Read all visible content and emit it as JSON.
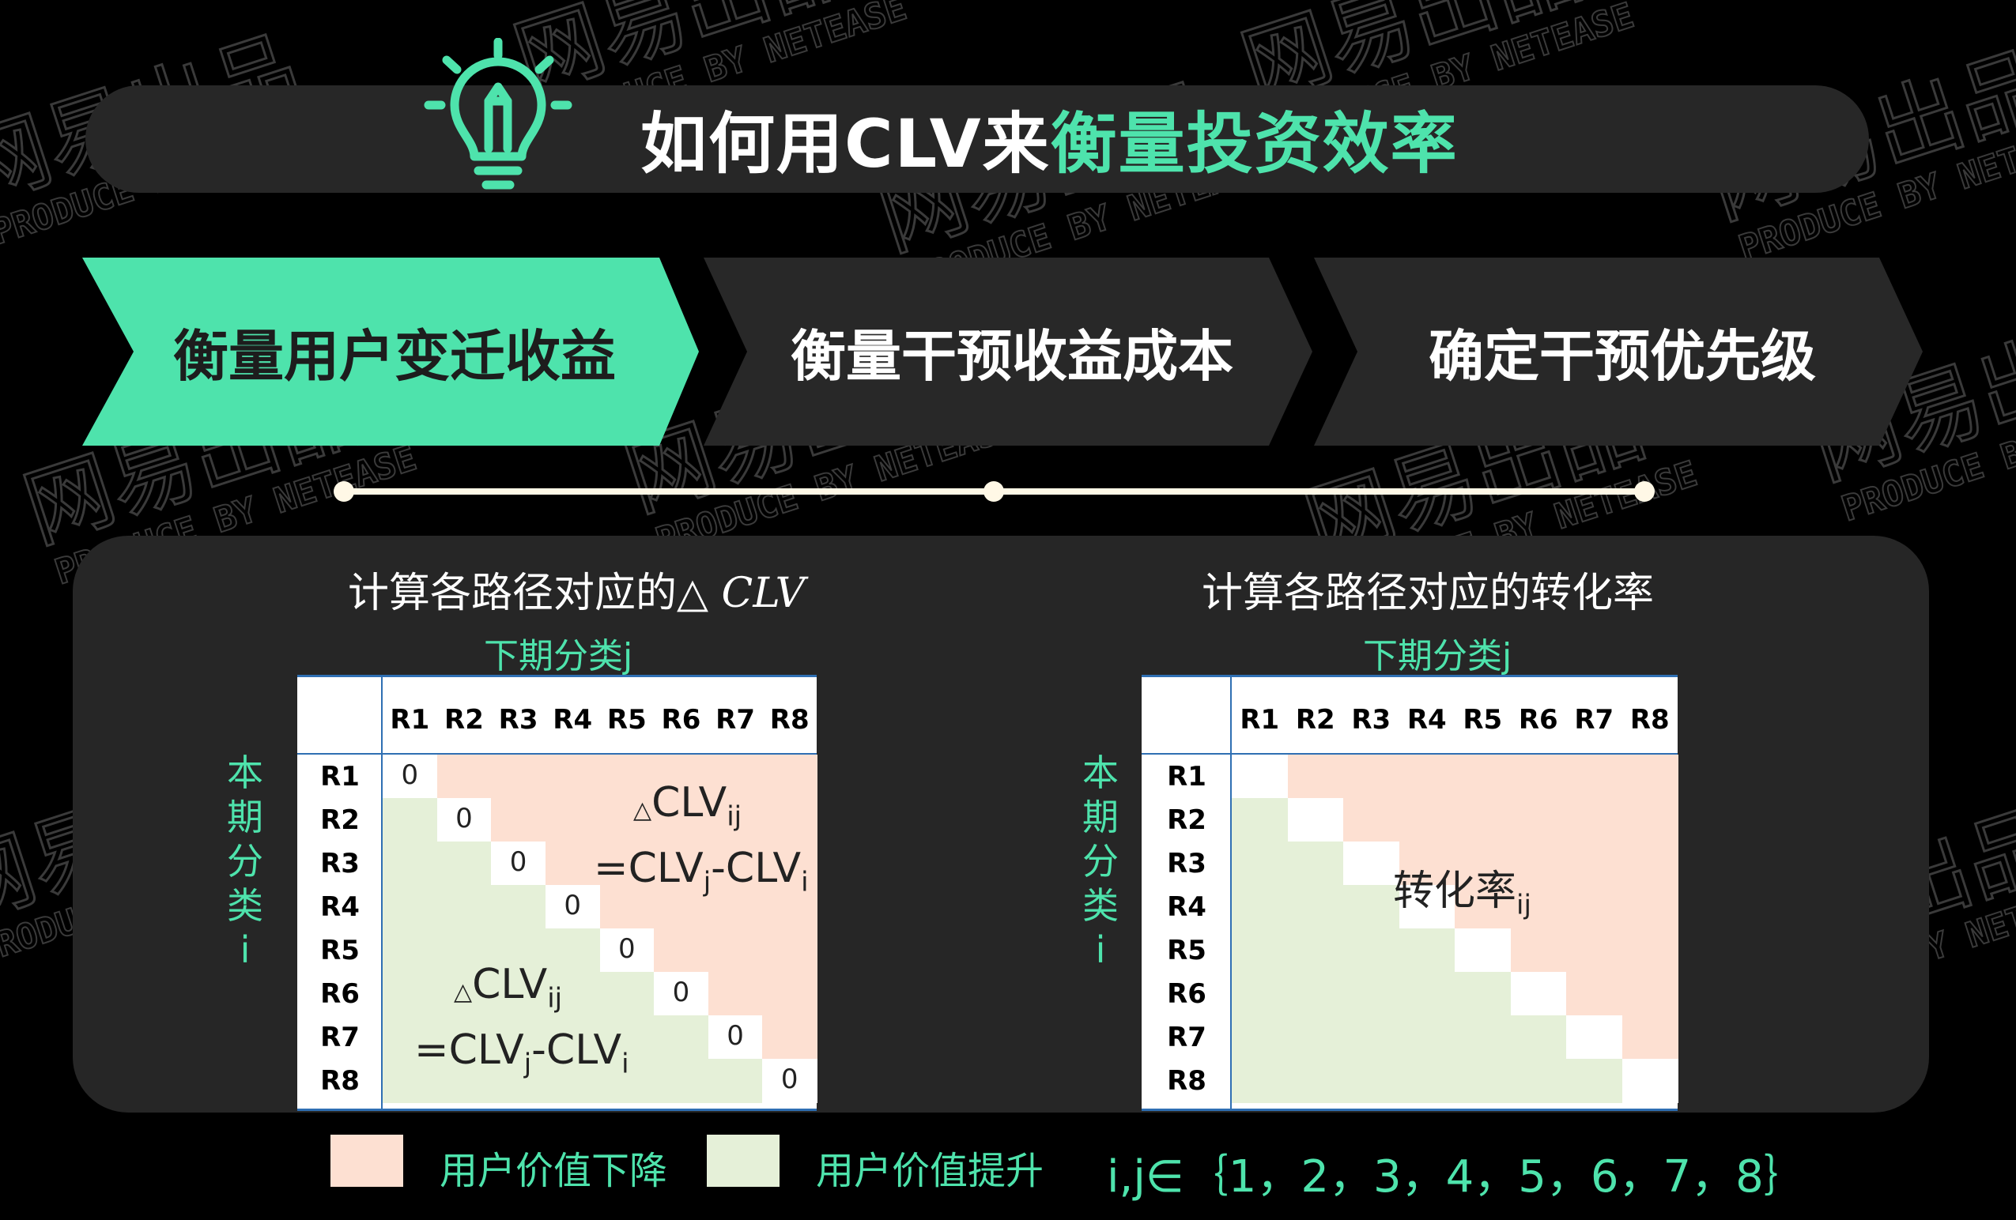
{
  "colors": {
    "accent": "#4ee3ac",
    "panel": "#262626",
    "dark_step": "#282828",
    "loss": "#fde0d2",
    "gain": "#e5f0d8",
    "diag": "#ffffff",
    "rule": "#2f6fb3"
  },
  "watermark": {
    "line1": "网易出品",
    "line2": "PRODUCE BY NETEASE"
  },
  "header": {
    "icon": "lightbulb-pencil-icon",
    "title_prefix": "如何用CLV来",
    "title_highlight": "衡量投资效率"
  },
  "steps": [
    {
      "label": "衡量用户变迁收益",
      "active": true
    },
    {
      "label": "衡量干预收益成本",
      "active": false
    },
    {
      "label": "确定干预优先级",
      "active": false
    }
  ],
  "left": {
    "title": "计算各路径对应的△ CLV",
    "title_main": "计算各路径对应的△",
    "title_math": "CLV",
    "col_axis": "下期分类j",
    "row_axis": [
      "本",
      "期",
      "分",
      "类",
      "i"
    ],
    "cols": [
      "R1",
      "R2",
      "R3",
      "R4",
      "R5",
      "R6",
      "R7",
      "R8"
    ],
    "rows": [
      "R1",
      "R2",
      "R3",
      "R4",
      "R5",
      "R6",
      "R7",
      "R8"
    ],
    "diag_value": "0",
    "upper_formula": {
      "delta": "△",
      "name": "CLV",
      "sub": "ij",
      "eq_pre": "=CLV",
      "j": "j",
      "mid": "-CLV",
      "i": "i"
    },
    "lower_formula": {
      "delta": "△",
      "name": "CLV",
      "sub": "ij",
      "eq_pre": "=CLV",
      "j": "j",
      "mid": "-CLV",
      "i": "i"
    }
  },
  "right": {
    "title": "计算各路径对应的转化率",
    "col_axis": "下期分类j",
    "row_axis": [
      "本",
      "期",
      "分",
      "类",
      "i"
    ],
    "cols": [
      "R1",
      "R2",
      "R3",
      "R4",
      "R5",
      "R6",
      "R7",
      "R8"
    ],
    "rows": [
      "R1",
      "R2",
      "R3",
      "R4",
      "R5",
      "R6",
      "R7",
      "R8"
    ],
    "formula": {
      "name": "转化率",
      "sub": "ij"
    }
  },
  "legend": {
    "loss": "用户价值下降",
    "gain": "用户价值提升",
    "index_set": "i,j∈｛1，2，3，4，5，6，7，8｝"
  }
}
